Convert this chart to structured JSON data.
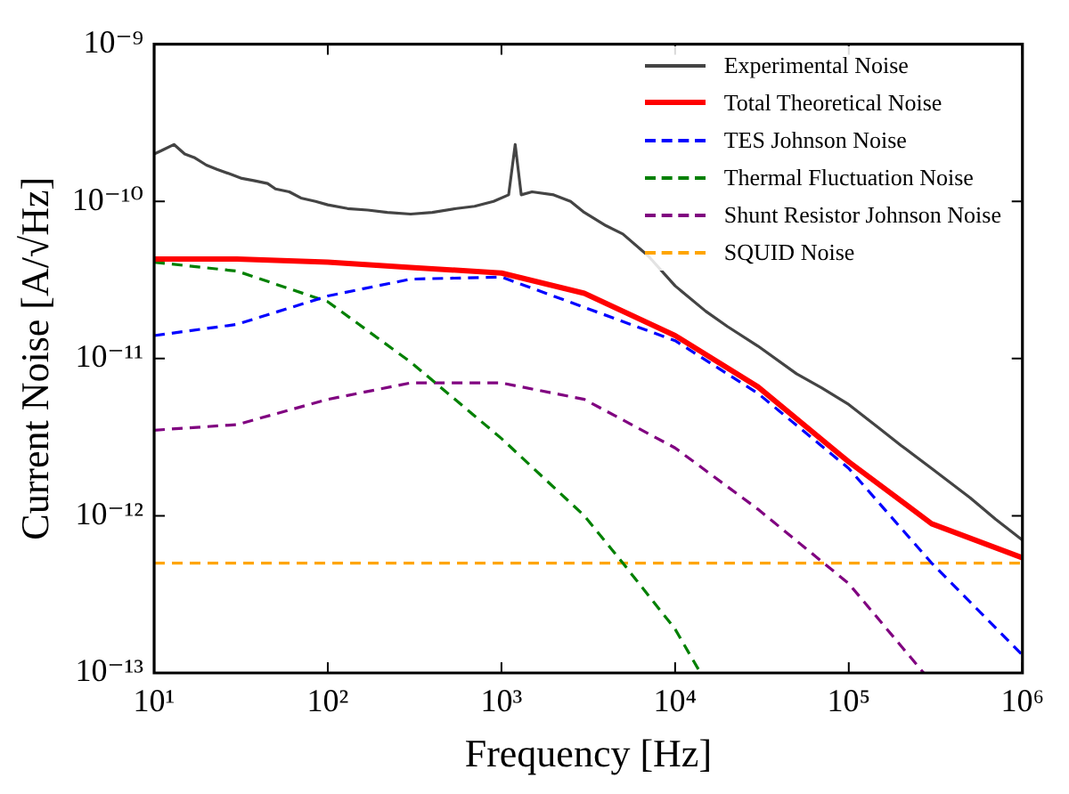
{
  "chart_data": {
    "type": "line",
    "xlabel": "Frequency [Hz]",
    "ylabel": "Current Noise [A/√Hz]",
    "log": "xy",
    "grid": false,
    "legend": "top right",
    "marker": "none",
    "xlim": [
      10,
      1000000
    ],
    "xticks": [
      {
        "value": 10,
        "label": "10¹"
      },
      {
        "value": 100,
        "label": "10²"
      },
      {
        "value": 1000,
        "label": "10³"
      },
      {
        "value": 10000,
        "label": "10⁴"
      },
      {
        "value": 100000,
        "label": "10⁵"
      },
      {
        "value": 1000000,
        "label": "10⁶"
      }
    ],
    "ylim": [
      1e-13,
      1e-09
    ],
    "yticks": [
      {
        "value": 1e-13,
        "label": "10⁻¹³"
      },
      {
        "value": 1e-12,
        "label": "10⁻¹²"
      },
      {
        "value": 1e-11,
        "label": "10⁻¹¹"
      },
      {
        "value": 1e-10,
        "label": "10⁻¹⁰"
      },
      {
        "value": 1e-09,
        "label": "10⁻⁹"
      }
    ],
    "series": [
      {
        "name": "Experimental Noise",
        "color": "#444444",
        "line_style": "solid",
        "x": [
          10,
          11,
          13,
          15,
          17,
          20,
          23,
          27,
          32,
          38,
          45,
          50,
          60,
          70,
          85,
          100,
          130,
          170,
          220,
          300,
          400,
          550,
          700,
          900,
          1100,
          1200,
          1300,
          1500,
          2000,
          2500,
          3000,
          4000,
          5000,
          7000,
          10000,
          15000,
          20000,
          30000,
          50000,
          70000,
          100000,
          150000,
          200000,
          300000,
          500000,
          700000,
          1000000
        ],
        "values": [
          2e-10,
          2.1e-10,
          2.3e-10,
          2e-10,
          1.9e-10,
          1.7e-10,
          1.6e-10,
          1.5e-10,
          1.4e-10,
          1.35e-10,
          1.3e-10,
          1.2e-10,
          1.15e-10,
          1.05e-10,
          1e-10,
          9.5e-11,
          9e-11,
          8.8e-11,
          8.5e-11,
          8.3e-11,
          8.5e-11,
          9e-11,
          9.3e-11,
          1e-10,
          1.1e-10,
          2.3e-10,
          1.1e-10,
          1.15e-10,
          1.1e-10,
          1e-10,
          8.5e-11,
          7e-11,
          6.2e-11,
          4.5e-11,
          2.9e-11,
          2e-11,
          1.6e-11,
          1.2e-11,
          8e-12,
          6.5e-12,
          5.1e-12,
          3.6e-12,
          2.8e-12,
          2e-12,
          1.3e-12,
          9.5e-13,
          7e-13
        ]
      },
      {
        "name": "Total Theoretical Noise",
        "color": "#ff0000",
        "line_style": "solid",
        "x": [
          10,
          30,
          100,
          300,
          1000,
          3000,
          10000,
          30000,
          100000,
          300000,
          1000000
        ],
        "values": [
          4.3e-11,
          4.3e-11,
          4.1e-11,
          3.8e-11,
          3.5e-11,
          2.6e-11,
          1.4e-11,
          6.6e-12,
          2.2e-12,
          8.9e-13,
          5.4e-13
        ]
      },
      {
        "name": "TES Johnson Noise",
        "color": "#0000ff",
        "line_style": "dashed",
        "x": [
          10,
          30,
          100,
          300,
          1000,
          3000,
          10000,
          30000,
          100000,
          300000,
          1000000
        ],
        "values": [
          1.4e-11,
          1.65e-11,
          2.5e-11,
          3.2e-11,
          3.3e-11,
          null,
          1.3e-11,
          6e-12,
          2e-12,
          5e-13,
          1.3e-13
        ]
      },
      {
        "name": "Thermal Fluctuation Noise",
        "color": "#008000",
        "line_style": "dashed",
        "x": [
          10,
          30,
          100,
          300,
          1000,
          3000,
          5000,
          10000,
          14000
        ],
        "values": [
          4.1e-11,
          3.6e-11,
          2.3e-11,
          9.5e-12,
          3.1e-12,
          1e-12,
          5e-13,
          1.9e-13,
          1e-13
        ]
      },
      {
        "name": "Shunt Resistor Johnson Noise",
        "color": "#800080",
        "line_style": "dashed",
        "x": [
          10,
          30,
          100,
          300,
          1000,
          3000,
          10000,
          30000,
          100000,
          270000
        ],
        "values": [
          3.5e-12,
          3.8e-12,
          5.5e-12,
          7e-12,
          7e-12,
          5.5e-12,
          2.7e-12,
          1.1e-12,
          3.7e-13,
          1e-13
        ]
      },
      {
        "name": "SQUID Noise",
        "color": "#ffa500",
        "line_style": "dashed",
        "x": [
          10,
          1000000
        ],
        "values": [
          5e-13,
          5e-13
        ]
      }
    ]
  }
}
